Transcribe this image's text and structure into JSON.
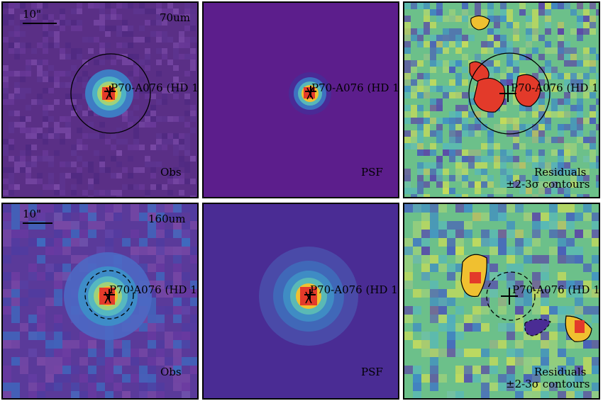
{
  "figure": {
    "scale_label": "10\"",
    "source_label": "P70-A076 (HD 1",
    "rows": [
      {
        "band": "70um",
        "panels": [
          {
            "kind": "observed",
            "label": "Obs"
          },
          {
            "kind": "psf",
            "label": "PSF"
          },
          {
            "kind": "residual",
            "label_1": "Residuals",
            "label_2": "±2-3σ contours"
          }
        ]
      },
      {
        "band": "160um",
        "panels": [
          {
            "kind": "observed",
            "label": "Obs"
          },
          {
            "kind": "psf",
            "label": "PSF"
          },
          {
            "kind": "residual",
            "label_1": "Residuals",
            "label_2": "±2-3σ contours"
          }
        ]
      }
    ]
  },
  "colors": {
    "background_violet": "#5a2a8a",
    "psf_background": "#5c1e8c",
    "peak_red": "#e33a2a",
    "ring": "#f0c030",
    "residual_green": "#6cc08a"
  }
}
